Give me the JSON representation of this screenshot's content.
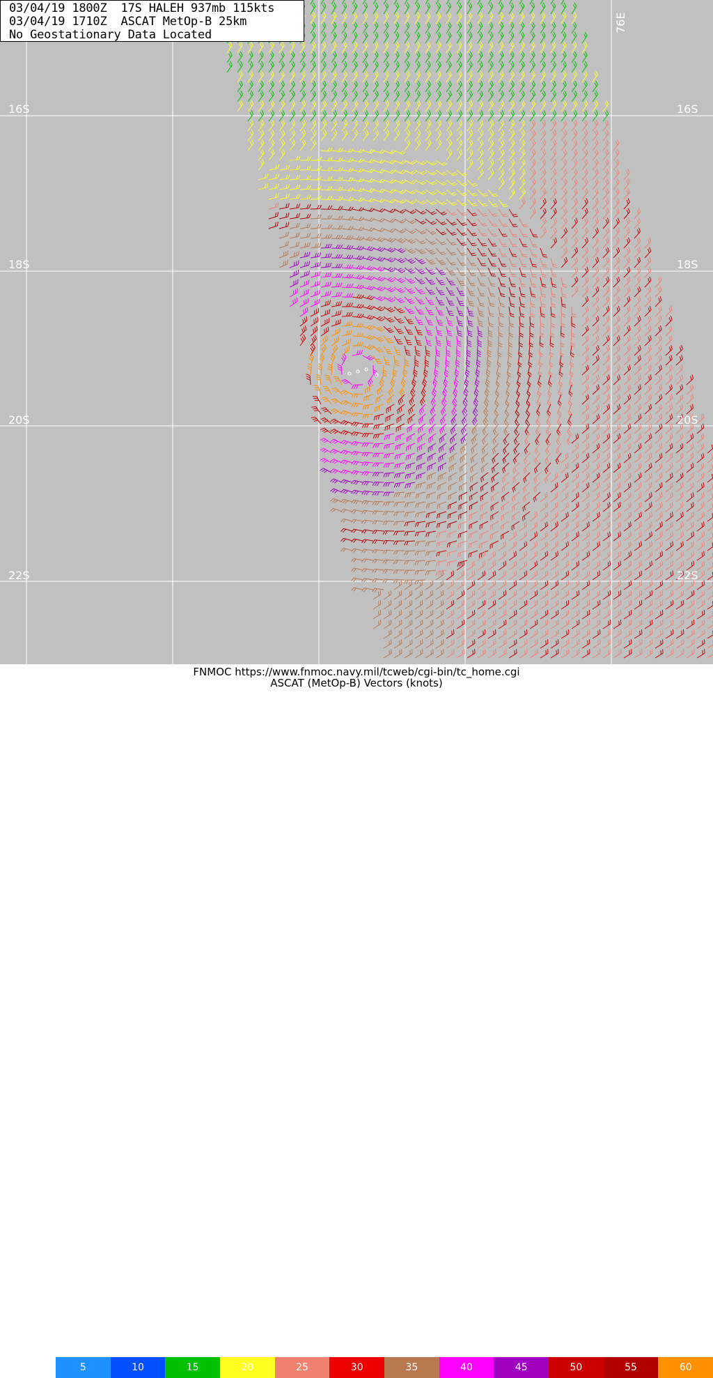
{
  "header": {
    "line1": "03/04/19 1800Z  17S HALEH 937mb 115kts",
    "line2": "03/04/19 1710Z  ASCAT MetOp-B 25km",
    "line3": "No Geostationary Data Located"
  },
  "map": {
    "background_color": "#c0c0c0",
    "grid_color": "#ffffff",
    "lat_labels": [
      "16S",
      "18S",
      "20S",
      "22S"
    ],
    "lon_label": "76E",
    "storm_center_marker": "white-circle-icon"
  },
  "footer": {
    "source_line": "FNMOC https://www.fnmoc.navy.mil/tcweb/cgi-bin/tc_home.cgi",
    "vectors_line": "ASCAT (MetOp-B) Vectors (knots)"
  },
  "legend": [
    {
      "value": "5",
      "color": "#1e90ff"
    },
    {
      "value": "10",
      "color": "#0050ff"
    },
    {
      "value": "15",
      "color": "#00c000"
    },
    {
      "value": "20",
      "color": "#ffff20"
    },
    {
      "value": "25",
      "color": "#f08070"
    },
    {
      "value": "30",
      "color": "#ee0000"
    },
    {
      "value": "35",
      "color": "#b87850"
    },
    {
      "value": "40",
      "color": "#ff00ff"
    },
    {
      "value": "45",
      "color": "#a000c0"
    },
    {
      "value": "50",
      "color": "#cc0000"
    },
    {
      "value": "55",
      "color": "#b00000"
    },
    {
      "value": "60",
      "color": "#ff9000"
    }
  ]
}
